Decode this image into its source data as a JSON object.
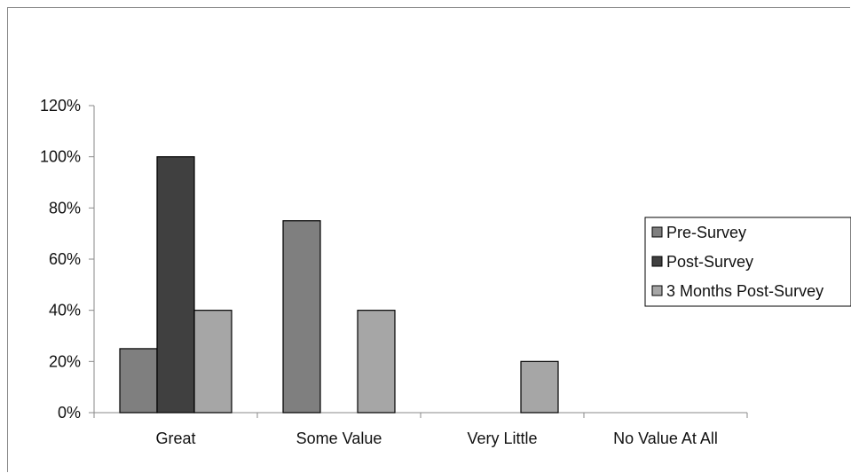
{
  "chart_data": {
    "type": "bar",
    "categories": [
      "Great",
      "Some Value",
      "Very Little",
      "No Value At All"
    ],
    "series": [
      {
        "name": "Pre-Survey",
        "values": [
          25,
          75,
          0,
          0
        ],
        "color": "#7f7f7f"
      },
      {
        "name": "Post-Survey",
        "values": [
          100,
          0,
          0,
          0
        ],
        "color": "#404040"
      },
      {
        "name": "3 Months Post-Survey",
        "values": [
          40,
          40,
          20,
          0
        ],
        "color": "#a6a6a6"
      }
    ],
    "ylim": [
      0,
      120
    ],
    "yticks": [
      "0%",
      "20%",
      "40%",
      "60%",
      "80%",
      "100%",
      "120%"
    ],
    "grid": false,
    "legend_position": "right"
  }
}
